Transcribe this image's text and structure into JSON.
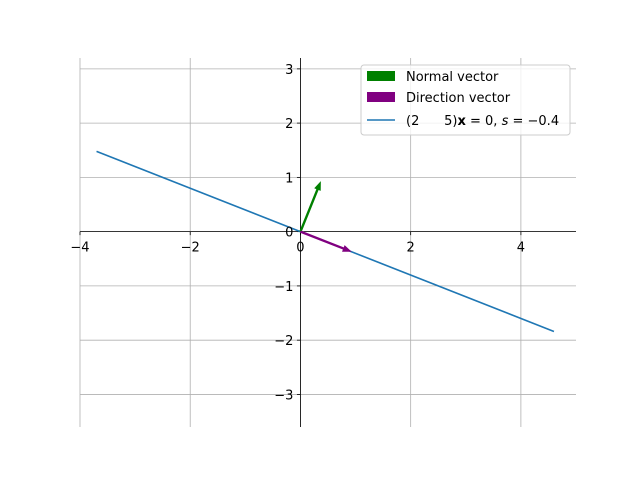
{
  "chart_data": {
    "type": "line",
    "title": "",
    "xlabel": "",
    "ylabel": "",
    "xlim": [
      -4,
      5
    ],
    "ylim": [
      -3.6,
      3.2
    ],
    "xticks": [
      -4,
      -2,
      0,
      2,
      4
    ],
    "yticks": [
      -3,
      -2,
      -1,
      0,
      1,
      2,
      3
    ],
    "xtick_labels": [
      "−4",
      "−2",
      "0",
      "2",
      "4"
    ],
    "ytick_labels": [
      "−3",
      "−2",
      "−1",
      "0",
      "1",
      "2",
      "3"
    ],
    "grid": true,
    "spines": "centered",
    "legend_position": "top-right",
    "series": [
      {
        "name": "(2      5)x = 0, s = −0.4",
        "legend_parts": [
          "(2      5)",
          "x",
          " = 0, ",
          "s",
          " = −0.4"
        ],
        "kind": "line",
        "color": "#1f77b4",
        "x": [
          -3.7,
          4.6
        ],
        "y": [
          1.48,
          -1.84
        ]
      }
    ],
    "vectors": [
      {
        "name": "Normal vector",
        "color": "#008000",
        "origin": [
          0,
          0
        ],
        "components": [
          0.37,
          0.93
        ]
      },
      {
        "name": "Direction vector",
        "color": "#800080",
        "origin": [
          0,
          0
        ],
        "components": [
          0.93,
          -0.37
        ]
      }
    ]
  }
}
